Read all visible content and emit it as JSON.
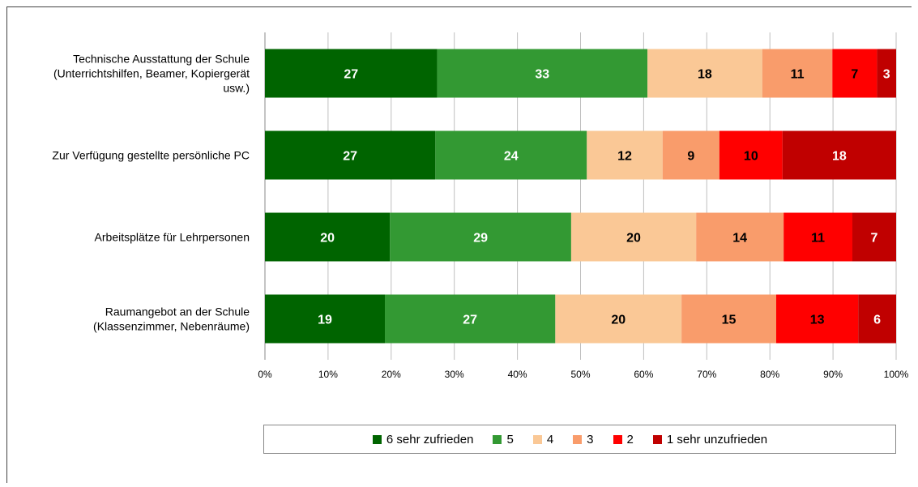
{
  "chart_data": {
    "type": "bar",
    "orientation": "horizontal",
    "stacked": "percent",
    "categories": [
      [
        "Technische Ausstattung der Schule",
        "(Unterrichtshilfen, Beamer, Kopiergerät",
        "usw.)"
      ],
      [
        "Zur Verfügung gestellte persönliche PC"
      ],
      [
        "Arbeitsplätze für Lehrpersonen"
      ],
      [
        "Raumangebot an der Schule",
        "(Klassenzimmer, Nebenräume)"
      ]
    ],
    "series": [
      {
        "name": "6 sehr zufrieden",
        "color": "#006400",
        "label_color": "#ffffff",
        "values": [
          27,
          27,
          20,
          19
        ]
      },
      {
        "name": "5",
        "color": "#339933",
        "label_color": "#ffffff",
        "values": [
          33,
          24,
          29,
          27
        ]
      },
      {
        "name": "4",
        "color": "#fac896",
        "label_color": "#000000",
        "values": [
          18,
          12,
          20,
          20
        ]
      },
      {
        "name": "3",
        "color": "#f99c6b",
        "label_color": "#000000",
        "values": [
          11,
          9,
          14,
          15
        ]
      },
      {
        "name": "2",
        "color": "#ff0000",
        "label_color": "#000000",
        "values": [
          7,
          10,
          11,
          13
        ]
      },
      {
        "name": "1 sehr unzufrieden",
        "color": "#c00000",
        "label_color": "#ffffff",
        "values": [
          3,
          18,
          7,
          6
        ]
      }
    ],
    "xlim": [
      0,
      100
    ],
    "x_ticks": [
      "0%",
      "10%",
      "20%",
      "30%",
      "40%",
      "50%",
      "60%",
      "70%",
      "80%",
      "90%",
      "100%"
    ],
    "grid": true,
    "legend_position": "bottom"
  }
}
